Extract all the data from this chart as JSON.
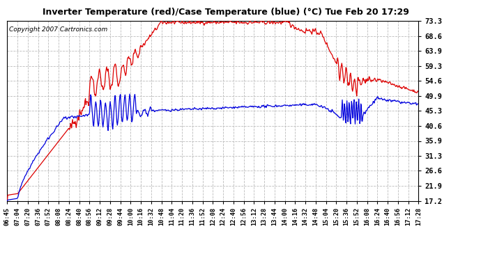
{
  "title": "Inverter Temperature (red)/Case Temperature (blue) (°C) Tue Feb 20 17:29",
  "copyright": "Copyright 2007 Cartronics.com",
  "y_ticks": [
    17.2,
    21.9,
    26.6,
    31.3,
    35.9,
    40.6,
    45.3,
    49.9,
    54.6,
    59.3,
    63.9,
    68.6,
    73.3
  ],
  "y_min": 17.2,
  "y_max": 73.3,
  "background_color": "#ffffff",
  "plot_bg_color": "#ffffff",
  "grid_color": "#bbbbbb",
  "red_color": "#dd0000",
  "blue_color": "#0000dd",
  "x_labels": [
    "06:45",
    "07:04",
    "07:20",
    "07:36",
    "07:52",
    "08:08",
    "08:24",
    "08:40",
    "08:56",
    "09:12",
    "09:28",
    "09:44",
    "10:00",
    "10:16",
    "10:32",
    "10:48",
    "11:04",
    "11:20",
    "11:36",
    "11:52",
    "12:08",
    "12:24",
    "12:40",
    "12:56",
    "13:12",
    "13:28",
    "13:44",
    "14:00",
    "14:16",
    "14:32",
    "14:48",
    "15:04",
    "15:20",
    "15:36",
    "15:52",
    "16:08",
    "16:24",
    "16:40",
    "16:56",
    "17:12",
    "17:28"
  ],
  "n_points": 800
}
